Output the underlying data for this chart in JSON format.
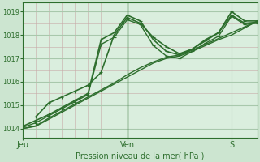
{
  "bg_color": "#cce5d0",
  "plot_bg": "#daeede",
  "grid_minor_color": "#c8a8a8",
  "grid_major_color": "#a8c8ac",
  "line_color": "#2d6e2d",
  "title": "Pression niveau de la mer( hPa )",
  "ylabel_ticks": [
    1014,
    1015,
    1016,
    1017,
    1018,
    1019
  ],
  "ylim": [
    1013.6,
    1019.4
  ],
  "xlim": [
    0,
    108
  ],
  "xlabel_ticks": [
    0,
    48,
    96
  ],
  "xlabel_labels": [
    "Jeu",
    "Ven",
    "S"
  ],
  "vline_x": 48,
  "lines": [
    {
      "x": [
        0,
        6,
        12,
        18,
        24,
        30,
        36,
        42,
        48,
        54,
        60,
        66,
        72,
        78,
        84,
        90,
        96,
        102,
        108
      ],
      "y": [
        1014.1,
        1014.35,
        1014.6,
        1014.9,
        1015.2,
        1015.5,
        1017.8,
        1018.1,
        1018.85,
        1018.6,
        1017.8,
        1017.3,
        1017.15,
        1017.4,
        1017.8,
        1018.1,
        1019.0,
        1018.6,
        1018.6
      ],
      "lw": 1.2,
      "marker": true
    },
    {
      "x": [
        0,
        6,
        12,
        18,
        24,
        30,
        36,
        42,
        48,
        54,
        60,
        66,
        72,
        78,
        84,
        90,
        96,
        102,
        108
      ],
      "y": [
        1014.05,
        1014.25,
        1014.55,
        1014.85,
        1015.15,
        1015.45,
        1017.6,
        1017.9,
        1018.65,
        1018.45,
        1017.55,
        1017.1,
        1017.0,
        1017.3,
        1017.65,
        1017.95,
        1018.8,
        1018.45,
        1018.5
      ],
      "lw": 1.0,
      "marker": true
    },
    {
      "x": [
        0,
        6,
        12,
        18,
        24,
        30,
        36,
        42,
        48,
        54,
        60,
        66,
        72,
        78,
        84,
        90,
        96,
        102,
        108
      ],
      "y": [
        1014.0,
        1014.1,
        1014.4,
        1014.7,
        1015.0,
        1015.3,
        1015.6,
        1015.9,
        1016.2,
        1016.5,
        1016.8,
        1017.0,
        1017.1,
        1017.3,
        1017.55,
        1017.8,
        1018.0,
        1018.3,
        1018.6
      ],
      "lw": 1.0,
      "marker": false
    },
    {
      "x": [
        0,
        6,
        12,
        18,
        24,
        30,
        36,
        42,
        48,
        54,
        60,
        66,
        72,
        78,
        84,
        90,
        96,
        102,
        108
      ],
      "y": [
        1014.0,
        1014.12,
        1014.45,
        1014.75,
        1015.05,
        1015.35,
        1015.65,
        1015.95,
        1016.3,
        1016.6,
        1016.85,
        1017.05,
        1017.15,
        1017.35,
        1017.6,
        1017.85,
        1018.1,
        1018.35,
        1018.6
      ],
      "lw": 1.0,
      "marker": false
    },
    {
      "x": [
        6,
        12,
        18,
        24,
        30,
        36,
        42,
        48,
        54,
        60,
        66,
        72,
        78,
        84,
        90,
        96,
        102,
        108
      ],
      "y": [
        1014.5,
        1015.1,
        1015.35,
        1015.6,
        1015.85,
        1016.4,
        1018.0,
        1018.75,
        1018.5,
        1017.9,
        1017.5,
        1017.2,
        1017.4,
        1017.75,
        1018.1,
        1018.85,
        1018.5,
        1018.55
      ],
      "lw": 1.2,
      "marker": true
    }
  ]
}
